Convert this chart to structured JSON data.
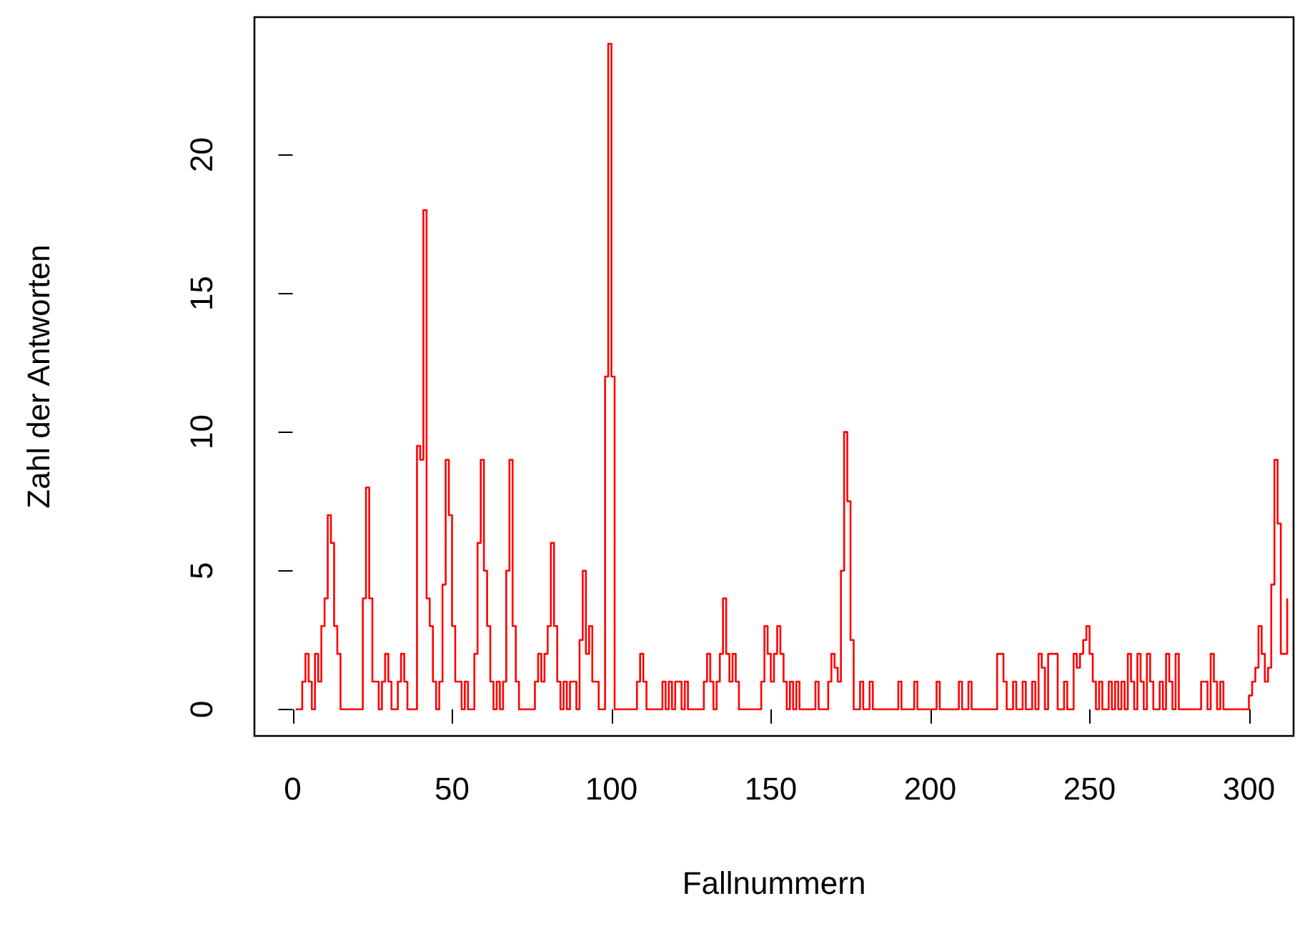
{
  "chart_data": {
    "type": "step",
    "xlabel": "Fallnummern",
    "ylabel": "Zahl der Antworten",
    "xlim": [
      -12,
      314
    ],
    "xticks": [
      0,
      50,
      100,
      150,
      200,
      250,
      300
    ],
    "ylim": [
      -0.96,
      24.96
    ],
    "yticks": [
      0,
      5,
      10,
      15,
      20
    ],
    "x": [
      1,
      2,
      3,
      4,
      5,
      6,
      7,
      8,
      9,
      10,
      11,
      12,
      13,
      14,
      15,
      16,
      17,
      18,
      19,
      20,
      21,
      22,
      23,
      24,
      25,
      26,
      27,
      28,
      29,
      30,
      31,
      32,
      33,
      34,
      35,
      36,
      37,
      38,
      39,
      40,
      41,
      42,
      43,
      44,
      45,
      46,
      47,
      48,
      49,
      50,
      51,
      52,
      53,
      54,
      55,
      56,
      57,
      58,
      59,
      60,
      61,
      62,
      63,
      64,
      65,
      66,
      67,
      68,
      69,
      70,
      71,
      72,
      73,
      74,
      75,
      76,
      77,
      78,
      79,
      80,
      81,
      82,
      83,
      84,
      85,
      86,
      87,
      88,
      89,
      90,
      91,
      92,
      93,
      94,
      95,
      96,
      97,
      98,
      99,
      100,
      101,
      102,
      103,
      104,
      105,
      106,
      107,
      108,
      109,
      110,
      111,
      112,
      113,
      114,
      115,
      116,
      117,
      118,
      119,
      120,
      121,
      122,
      123,
      124,
      125,
      126,
      127,
      128,
      129,
      130,
      131,
      132,
      133,
      134,
      135,
      136,
      137,
      138,
      139,
      140,
      141,
      142,
      143,
      144,
      145,
      146,
      147,
      148,
      149,
      150,
      151,
      152,
      153,
      154,
      155,
      156,
      157,
      158,
      159,
      160,
      161,
      162,
      163,
      164,
      165,
      166,
      167,
      168,
      169,
      170,
      171,
      172,
      173,
      174,
      175,
      176,
      177,
      178,
      179,
      180,
      181,
      182,
      183,
      184,
      185,
      186,
      187,
      188,
      189,
      190,
      191,
      192,
      193,
      194,
      195,
      196,
      197,
      198,
      199,
      200,
      201,
      202,
      203,
      204,
      205,
      206,
      207,
      208,
      209,
      210,
      211,
      212,
      213,
      214,
      215,
      216,
      217,
      218,
      219,
      220,
      221,
      222,
      223,
      224,
      225,
      226,
      227,
      228,
      229,
      230,
      231,
      232,
      233,
      234,
      235,
      236,
      237,
      238,
      239,
      240,
      241,
      242,
      243,
      244,
      245,
      246,
      247,
      248,
      249,
      250,
      251,
      252,
      253,
      254,
      255,
      256,
      257,
      258,
      259,
      260,
      261,
      262,
      263,
      264,
      265,
      266,
      267,
      268,
      269,
      270,
      271,
      272,
      273,
      274,
      275,
      276,
      277,
      278,
      279,
      280,
      281,
      282,
      283,
      284,
      285,
      286,
      287,
      288,
      289,
      290,
      291,
      292,
      293,
      294,
      295,
      296,
      297,
      298,
      299,
      300,
      301,
      302,
      303,
      304,
      305,
      306,
      307,
      308,
      309,
      310,
      311,
      312
    ],
    "series": [
      {
        "color": "#ff0000",
        "values": [
          0,
          0,
          1,
          2,
          1,
          0,
          2,
          1,
          3,
          4,
          7,
          6,
          3,
          2,
          0,
          0,
          0,
          0,
          0,
          0,
          0,
          4,
          8,
          4,
          1,
          1,
          0,
          1,
          2,
          1,
          0,
          0,
          1,
          2,
          1,
          0,
          0,
          0,
          9.5,
          9,
          18,
          4,
          3,
          1,
          0,
          1,
          4.5,
          9,
          7,
          3,
          1,
          1,
          0,
          1,
          0,
          0,
          2,
          6,
          9,
          5,
          3,
          1,
          0,
          1,
          0,
          1,
          5,
          9,
          3,
          1,
          0,
          0,
          0,
          0,
          0,
          1,
          2,
          1,
          2,
          3,
          6,
          3,
          1,
          0,
          1,
          0,
          1,
          1,
          0,
          2.5,
          5,
          2,
          3,
          1,
          1,
          0,
          0,
          12,
          24,
          12,
          0,
          0,
          0,
          0,
          0,
          0,
          0,
          1,
          2,
          1,
          0,
          0,
          0,
          0,
          0,
          1,
          0,
          1,
          0,
          1,
          1,
          0,
          1,
          0,
          0,
          0,
          0,
          0,
          1,
          2,
          1,
          0,
          1,
          2,
          4,
          2,
          1,
          2,
          1,
          0,
          0,
          0,
          0,
          0,
          0,
          0,
          1,
          3,
          2,
          1,
          2,
          3,
          2,
          1,
          0,
          1,
          0,
          1,
          0,
          0,
          0,
          0,
          0,
          1,
          0,
          0,
          0,
          1,
          2,
          1.5,
          1,
          5,
          10,
          7.5,
          2.5,
          0,
          0,
          1,
          0,
          0,
          1,
          0,
          0,
          0,
          0,
          0,
          0,
          0,
          0,
          1,
          0,
          0,
          0,
          0,
          1,
          0,
          0,
          0,
          0,
          0,
          0,
          1,
          0,
          0,
          0,
          0,
          0,
          0,
          1,
          0,
          0,
          1,
          0,
          0,
          0,
          0,
          0,
          0,
          0,
          0,
          2,
          2,
          1,
          0,
          0,
          1,
          0,
          0,
          1,
          0,
          0,
          1,
          0,
          2,
          1.5,
          0,
          2,
          2,
          2,
          0,
          0,
          1,
          0,
          0,
          2,
          1.5,
          2,
          2.5,
          3,
          2,
          1,
          0,
          1,
          0,
          0,
          1,
          0,
          1,
          0,
          1,
          0,
          2,
          1,
          0,
          2,
          1,
          0,
          2,
          1,
          0,
          0,
          1,
          0,
          2,
          1,
          0,
          2,
          0,
          0,
          0,
          0,
          0,
          0,
          0,
          1,
          1,
          0,
          2,
          1,
          0,
          1,
          0,
          0,
          0,
          0,
          0,
          0,
          0,
          0,
          0.5,
          1,
          1.5,
          3,
          2,
          1,
          1.5,
          4.5,
          9,
          6.7,
          2,
          2,
          4
        ]
      }
    ]
  }
}
